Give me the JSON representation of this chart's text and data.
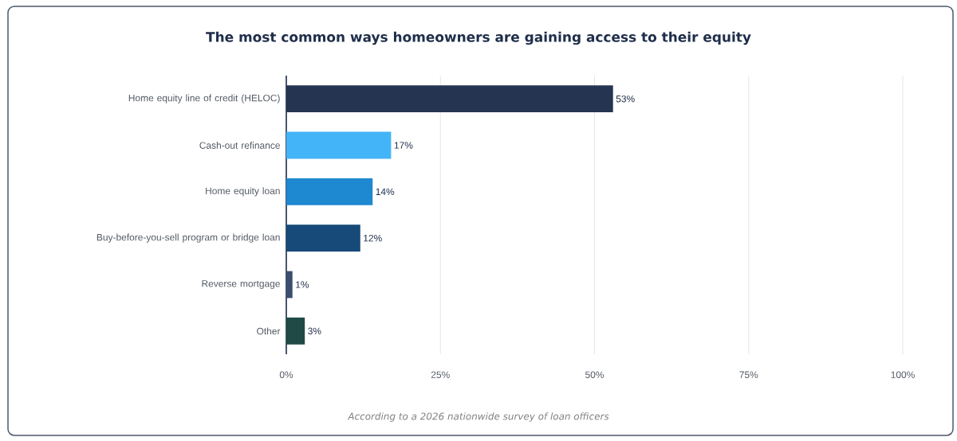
{
  "chart_data": {
    "type": "bar",
    "orientation": "horizontal",
    "title": "The most common ways homeowners are gaining access to their equity",
    "categories": [
      "Home equity line of credit (HELOC)",
      "Cash-out refinance",
      "Home equity loan",
      "Buy-before-you-sell program or bridge loan",
      "Reverse mortgage",
      "Other"
    ],
    "values": [
      53,
      17,
      14,
      12,
      1,
      3
    ],
    "value_labels": [
      "53%",
      "17%",
      "14%",
      "12%",
      "1%",
      "3%"
    ],
    "colors": [
      "#253551",
      "#44b4f8",
      "#1e88d0",
      "#174a78",
      "#3b4e6e",
      "#1f4a45"
    ],
    "xlim": [
      0,
      100
    ],
    "xticks": [
      {
        "value": 0,
        "label": "0%"
      },
      {
        "value": 25,
        "label": "25%"
      },
      {
        "value": 50,
        "label": "50%"
      },
      {
        "value": 75,
        "label": "75%"
      },
      {
        "value": 100,
        "label": "100%"
      }
    ],
    "grid": "x",
    "annotations": [
      "According to a 2026 nationwide survey of loan officers"
    ]
  }
}
